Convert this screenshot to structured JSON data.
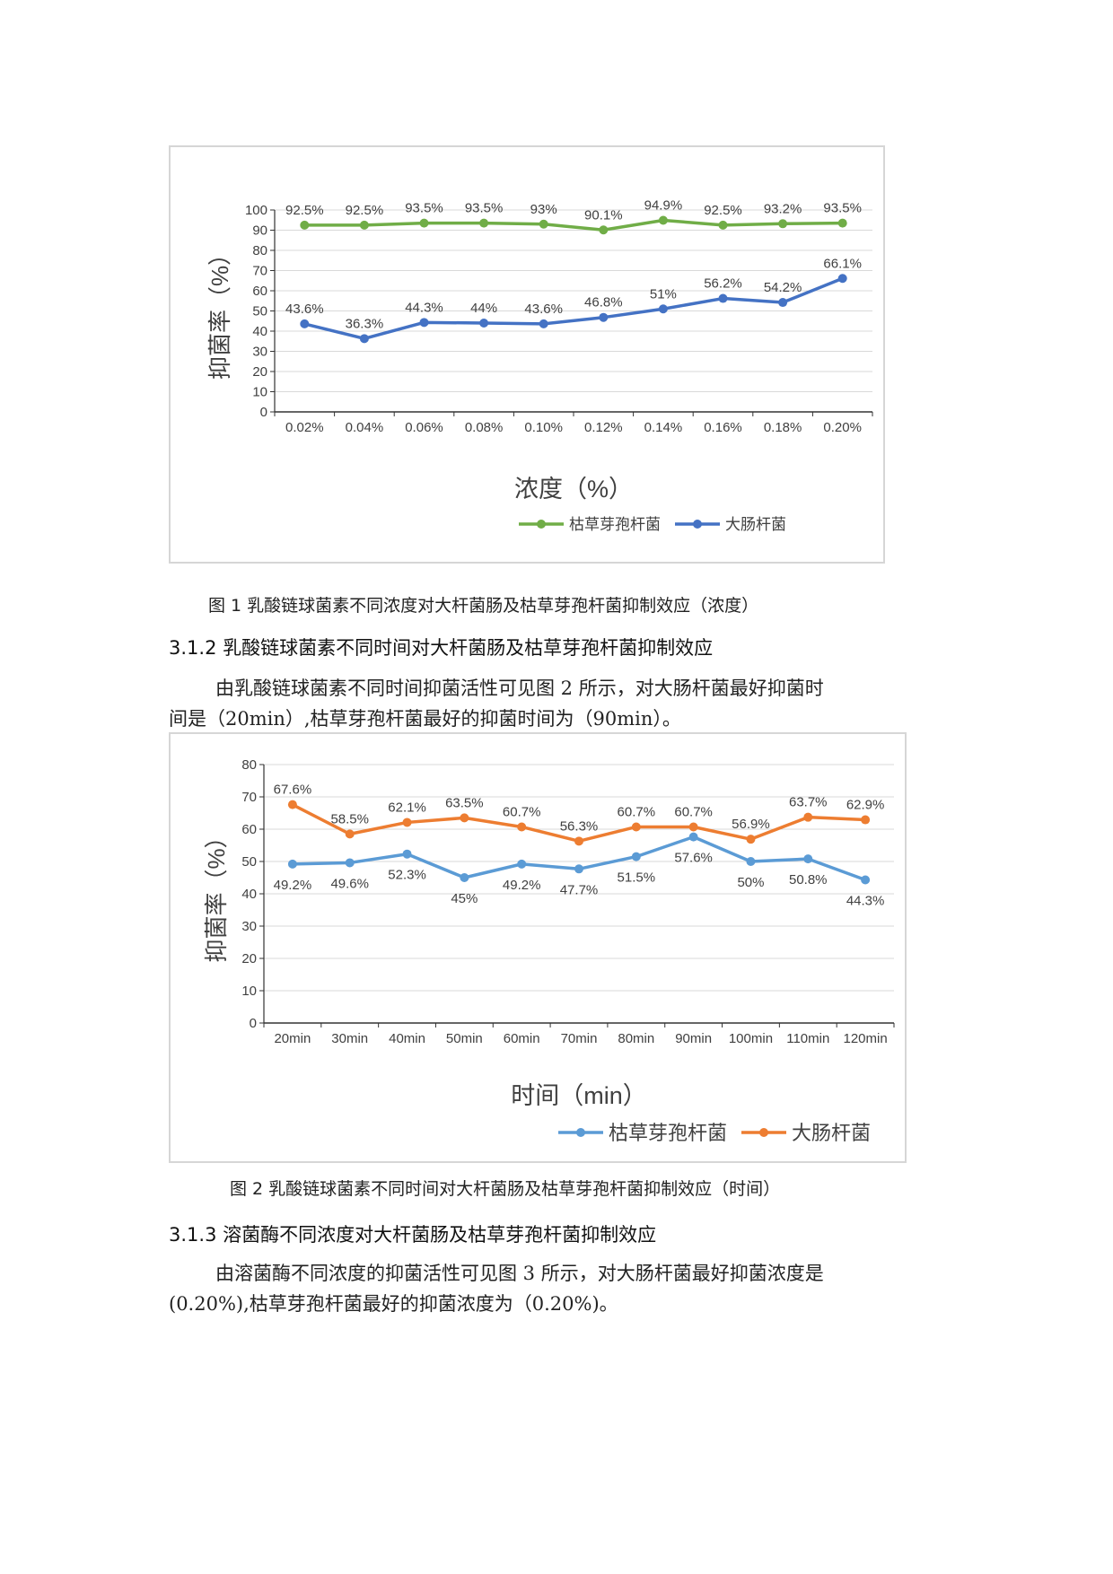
{
  "figure1": {
    "caption": "图 1 乳酸链球菌素不同浓度对大杆菌肠及枯草芽孢杆菌抑制效应（浓度）",
    "chart_data": {
      "type": "line",
      "categories": [
        "0.02%",
        "0.04%",
        "0.06%",
        "0.08%",
        "0.10%",
        "0.12%",
        "0.14%",
        "0.16%",
        "0.18%",
        "0.20%"
      ],
      "series": [
        {
          "name": "枯草芽孢杆菌",
          "color": "#70ad47",
          "values": [
            92.5,
            92.5,
            93.5,
            93.5,
            93,
            90.1,
            94.9,
            92.5,
            93.2,
            93.5
          ],
          "labels": [
            "92.5%",
            "92.5%",
            "93.5%",
            "93.5%",
            "93%",
            "90.1%",
            "94.9%",
            "92.5%",
            "93.2%",
            "93.5%"
          ],
          "label_pos": "above"
        },
        {
          "name": "大肠杆菌",
          "color": "#4472c4",
          "values": [
            43.6,
            36.3,
            44.3,
            44,
            43.6,
            46.8,
            51,
            56.2,
            54.2,
            66.1
          ],
          "labels": [
            "43.6%",
            "36.3%",
            "44.3%",
            "44%",
            "43.6%",
            "46.8%",
            "51%",
            "56.2%",
            "54.2%",
            "66.1%"
          ],
          "label_pos": "above"
        }
      ],
      "ylim": [
        0,
        100
      ],
      "yticks": [
        0,
        10,
        20,
        30,
        40,
        50,
        60,
        70,
        80,
        90,
        100
      ],
      "ylabel": "抑菌率（%）",
      "xlabel": "浓度（%）",
      "legend": "bottom",
      "grid": true
    }
  },
  "section_312": {
    "heading": "3.1.2 乳酸链球菌素不同时间对大杆菌肠及枯草芽孢杆菌抑制效应",
    "para_line1": "由乳酸链球菌素不同时间抑菌活性可见图 2 所示，对大肠杆菌最好抑菌时",
    "para_line2": "间是（20min）,枯草芽孢杆菌最好的抑菌时间为（90min）。"
  },
  "figure2": {
    "caption": "图 2 乳酸链球菌素不同时间对大杆菌肠及枯草芽孢杆菌抑制效应（时间）",
    "chart_data": {
      "type": "line",
      "categories": [
        "20min",
        "30min",
        "40min",
        "50min",
        "60min",
        "70min",
        "80min",
        "90min",
        "100min",
        "110min",
        "120min"
      ],
      "series": [
        {
          "name": "枯草芽孢杆菌",
          "color": "#5b9bd5",
          "values": [
            49.2,
            49.6,
            52.3,
            45,
            49.2,
            47.7,
            51.5,
            57.6,
            50,
            50.8,
            44.3
          ],
          "labels": [
            "49.2%",
            "49.6%",
            "52.3%",
            "45%",
            "49.2%",
            "47.7%",
            "51.5%",
            "57.6%",
            "50%",
            "50.8%",
            "44.3%"
          ],
          "label_pos": "below"
        },
        {
          "name": "大肠杆菌",
          "color": "#ed7d31",
          "values": [
            67.6,
            58.5,
            62.1,
            63.5,
            60.7,
            56.3,
            60.7,
            60.7,
            56.9,
            63.7,
            62.9
          ],
          "labels": [
            "67.6%",
            "58.5%",
            "62.1%",
            "63.5%",
            "60.7%",
            "56.3%",
            "60.7%",
            "60.7%",
            "56.9%",
            "63.7%",
            "62.9%"
          ],
          "label_pos": "above"
        }
      ],
      "ylim": [
        0,
        80
      ],
      "yticks": [
        0,
        10,
        20,
        30,
        40,
        50,
        60,
        70,
        80
      ],
      "ylabel": "抑菌率（%）",
      "xlabel": "时间（min）",
      "legend": "bottom",
      "grid": true
    }
  },
  "section_313": {
    "heading": "3.1.3 溶菌酶不同浓度对大杆菌肠及枯草芽孢杆菌抑制效应",
    "para_line1": "由溶菌酶不同浓度的抑菌活性可见图 3 所示，对大肠杆菌最好抑菌浓度是",
    "para_line2": "(0.20%),枯草芽孢杆菌最好的抑菌浓度为（0.20%)。"
  }
}
